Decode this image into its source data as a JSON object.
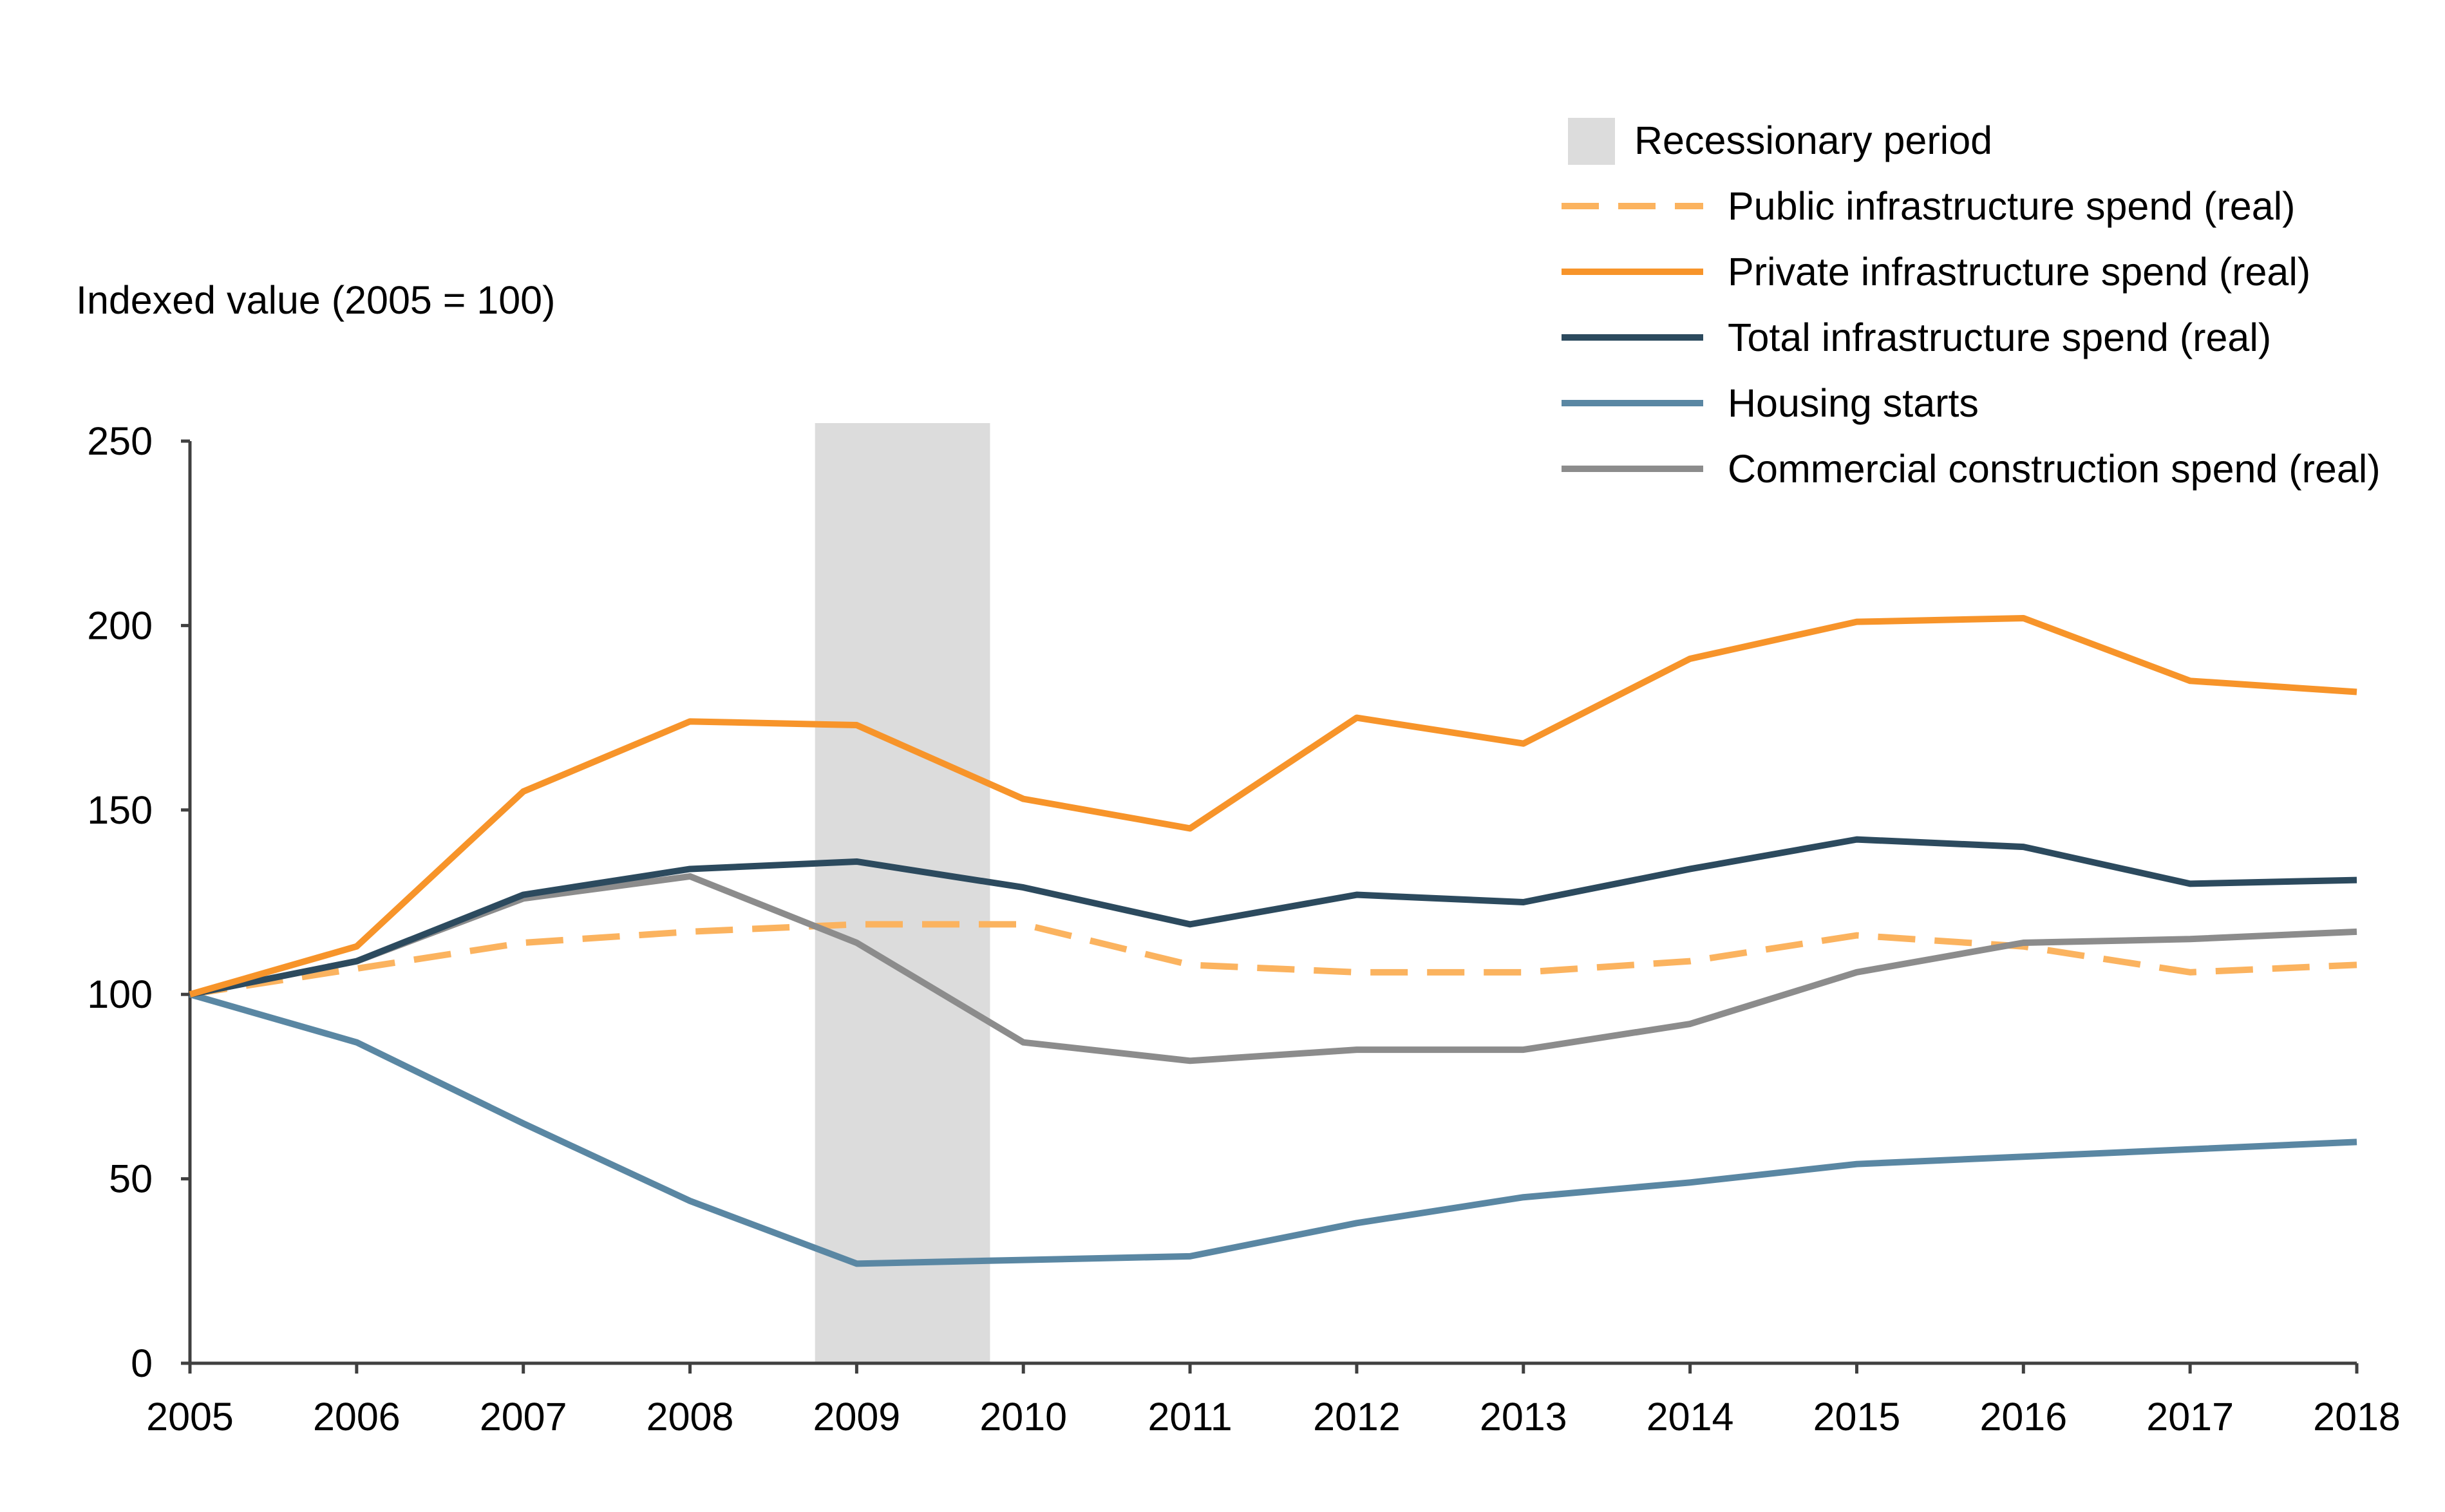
{
  "chart_data": {
    "type": "line",
    "ylabel": "Indexed value (2005 = 100)",
    "xlabel": "",
    "title": "",
    "x": [
      2005,
      2006,
      2007,
      2008,
      2009,
      2010,
      2011,
      2012,
      2013,
      2014,
      2015,
      2016,
      2017,
      2018
    ],
    "xlim": [
      2005,
      2018
    ],
    "ylim": [
      0,
      250
    ],
    "yticks": [
      0,
      50,
      100,
      150,
      200,
      250
    ],
    "grid": false,
    "legend_position": "top-right",
    "recession": {
      "label": "Recessionary period",
      "start": 2008.75,
      "end": 2009.8,
      "color": "#dcdcdc"
    },
    "series": [
      {
        "name": "Public infrastructure spend (real)",
        "color": "#fbb35f",
        "dashed": true,
        "values": [
          100,
          107,
          114,
          117,
          119,
          119,
          108,
          106,
          106,
          109,
          116,
          113,
          106,
          108
        ]
      },
      {
        "name": "Private infrastructure spend (real)",
        "color": "#f7942a",
        "dashed": false,
        "values": [
          100,
          113,
          155,
          174,
          173,
          153,
          145,
          175,
          168,
          191,
          201,
          202,
          185,
          182
        ]
      },
      {
        "name": "Total infrastructure spend (real)",
        "color": "#2c4a5e",
        "dashed": false,
        "values": [
          100,
          109,
          127,
          134,
          136,
          129,
          119,
          127,
          125,
          134,
          142,
          140,
          130,
          131
        ]
      },
      {
        "name": "Housing starts",
        "color": "#5a87a3",
        "dashed": false,
        "values": [
          100,
          87,
          65,
          44,
          27,
          28,
          29,
          38,
          45,
          49,
          54,
          56,
          58,
          60
        ]
      },
      {
        "name": "Commercial construction spend (real)",
        "color": "#8c8c8c",
        "dashed": false,
        "values": [
          100,
          109,
          126,
          132,
          114,
          87,
          82,
          85,
          85,
          92,
          106,
          114,
          115,
          117
        ]
      }
    ]
  }
}
